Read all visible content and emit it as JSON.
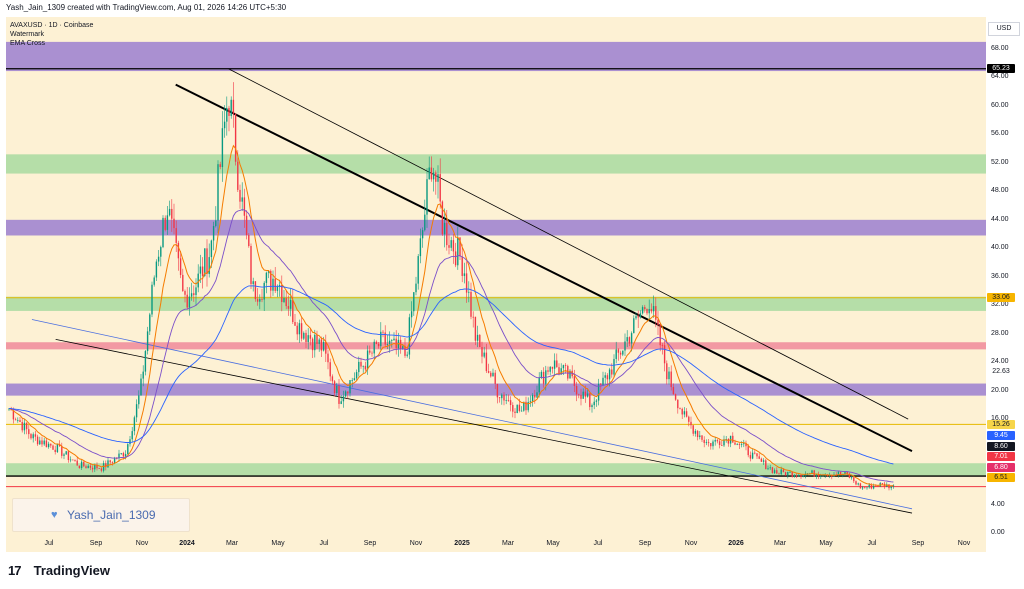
{
  "header": {
    "text": "Yash_Jain_1309 created with TradingView.com, Aug 01, 2026 14:26 UTC+5:30"
  },
  "legend": {
    "symbol": "AVAXUSD · 1D · Coinbase",
    "line2": "Watermark",
    "line3": "EMA Cross"
  },
  "currency": "USD",
  "watermark": {
    "icon": "heart-icon",
    "text": "Yash_Jain_1309"
  },
  "brand": {
    "logo": "17",
    "name": "TradingView"
  },
  "price_labels": [
    "68.00",
    "64.00",
    "60.00",
    "56.00",
    "52.00",
    "48.00",
    "44.00",
    "40.00",
    "36.00",
    "32.00",
    "28.00",
    "24.00",
    "20.00",
    "16.00",
    "4.00",
    "0.00"
  ],
  "price_tags": [
    {
      "text": "65.23",
      "bg": "#000000",
      "fg": "#ffffff"
    },
    {
      "text": "33.06",
      "bg": "#f7b500",
      "fg": "#131722"
    },
    {
      "text": "22.63",
      "bg": "#ffffff",
      "fg": "#131722"
    },
    {
      "text": "15.26",
      "bg": "#f7d54a",
      "fg": "#131722"
    },
    {
      "text": "9.45",
      "bg": "#2962ff",
      "fg": "#ffffff"
    },
    {
      "text": "8.60",
      "bg": "#131722",
      "fg": "#ffffff"
    },
    {
      "text": "7.01",
      "bg": "#f23645",
      "fg": "#ffffff"
    },
    {
      "text": "6.80",
      "bg": "#e5306a",
      "fg": "#ffffff"
    },
    {
      "text": "6.51",
      "bg": "#f7b500",
      "fg": "#131722"
    }
  ],
  "time_labels": [
    {
      "text": "Jul",
      "bold": false
    },
    {
      "text": "Sep",
      "bold": false
    },
    {
      "text": "Nov",
      "bold": false
    },
    {
      "text": "2024",
      "bold": true
    },
    {
      "text": "Mar",
      "bold": false
    },
    {
      "text": "May",
      "bold": false
    },
    {
      "text": "Jul",
      "bold": false
    },
    {
      "text": "Sep",
      "bold": false
    },
    {
      "text": "Nov",
      "bold": false
    },
    {
      "text": "2025",
      "bold": true
    },
    {
      "text": "Mar",
      "bold": false
    },
    {
      "text": "May",
      "bold": false
    },
    {
      "text": "Jul",
      "bold": false
    },
    {
      "text": "Sep",
      "bold": false
    },
    {
      "text": "Nov",
      "bold": false
    },
    {
      "text": "2026",
      "bold": true
    },
    {
      "text": "Mar",
      "bold": false
    },
    {
      "text": "May",
      "bold": false
    },
    {
      "text": "Jul",
      "bold": false
    },
    {
      "text": "Sep",
      "bold": false
    },
    {
      "text": "Nov",
      "bold": false
    }
  ],
  "colors": {
    "background": "#fdf1d4",
    "purple_zone": "#9b7fd0",
    "green_zone": "#a8dba0",
    "pink_zone": "#f08a9a",
    "candle_up": "#089981",
    "candle_down": "#f23645",
    "ema_fast": "#f57c00",
    "ema_slow": "#7b4fc9",
    "ema_long": "#2962ff"
  },
  "chart_data": {
    "type": "candlestick",
    "title": "AVAXUSD · 1D · Coinbase",
    "ylim": [
      0,
      70
    ],
    "zones": [
      {
        "from": 64.9,
        "to": 69.0,
        "color": "purple"
      },
      {
        "from": 50.5,
        "to": 53.2,
        "color": "green"
      },
      {
        "from": 41.8,
        "to": 44.0,
        "color": "purple"
      },
      {
        "from": 31.2,
        "to": 33.2,
        "color": "green"
      },
      {
        "from": 25.8,
        "to": 26.8,
        "color": "pink"
      },
      {
        "from": 19.3,
        "to": 21.0,
        "color": "purple"
      },
      {
        "from": 8.0,
        "to": 9.8,
        "color": "green"
      }
    ],
    "horizontal_levels": [
      {
        "value": 65.23,
        "color": "black"
      },
      {
        "value": 33.06,
        "color": "yellow"
      },
      {
        "value": 15.26,
        "color": "yellow"
      },
      {
        "value": 8.0,
        "color": "black"
      },
      {
        "value": 6.51,
        "color": "red"
      }
    ],
    "trendlines": [
      {
        "from": [
          "2024-03-14",
          65.23
        ],
        "to": [
          "2026-08-20",
          16.0
        ],
        "width": "thin"
      },
      {
        "from": [
          "2024-01-05",
          63.0
        ],
        "to": [
          "2026-08-25",
          11.5
        ],
        "width": "thick"
      },
      {
        "from": [
          "2023-08-01",
          27.2
        ],
        "to": [
          "2026-08-25",
          2.8
        ],
        "width": "thin"
      },
      {
        "from": [
          "2023-07-01",
          30.0
        ],
        "to": [
          "2026-08-25",
          3.4
        ],
        "width": "thin-blue"
      }
    ],
    "price_path": [
      [
        "2023-06-01",
        17.5
      ],
      [
        "2023-07-01",
        13.5
      ],
      [
        "2023-08-01",
        12.0
      ],
      [
        "2023-09-01",
        9.5
      ],
      [
        "2023-10-01",
        9.2
      ],
      [
        "2023-11-01",
        11.5
      ],
      [
        "2023-11-20",
        20.0
      ],
      [
        "2023-12-10",
        38.0
      ],
      [
        "2023-12-25",
        46.0
      ],
      [
        "2024-01-15",
        33.0
      ],
      [
        "2024-02-01",
        35.0
      ],
      [
        "2024-02-20",
        40.0
      ],
      [
        "2024-03-14",
        62.0
      ],
      [
        "2024-04-01",
        46.0
      ],
      [
        "2024-04-15",
        34.0
      ],
      [
        "2024-05-15",
        36.0
      ],
      [
        "2024-06-15",
        29.0
      ],
      [
        "2024-07-15",
        26.0
      ],
      [
        "2024-08-05",
        19.0
      ],
      [
        "2024-09-01",
        23.0
      ],
      [
        "2024-10-01",
        27.0
      ],
      [
        "2024-11-01",
        25.0
      ],
      [
        "2024-11-20",
        40.0
      ],
      [
        "2024-12-05",
        53.0
      ],
      [
        "2024-12-20",
        43.0
      ],
      [
        "2025-01-15",
        38.0
      ],
      [
        "2025-02-01",
        27.0
      ],
      [
        "2025-03-01",
        20.0
      ],
      [
        "2025-04-01",
        17.0
      ],
      [
        "2025-05-10",
        24.0
      ],
      [
        "2025-06-01",
        22.0
      ],
      [
        "2025-07-01",
        18.0
      ],
      [
        "2025-08-01",
        24.0
      ],
      [
        "2025-09-15",
        33.0
      ],
      [
        "2025-10-10",
        22.0
      ],
      [
        "2025-11-01",
        16.0
      ],
      [
        "2025-12-01",
        12.5
      ],
      [
        "2026-01-01",
        13.5
      ],
      [
        "2026-02-01",
        10.5
      ],
      [
        "2026-03-01",
        8.5
      ],
      [
        "2026-04-01",
        8.3
      ],
      [
        "2026-05-01",
        8.4
      ],
      [
        "2026-06-01",
        8.2
      ],
      [
        "2026-06-20",
        6.3
      ],
      [
        "2026-07-15",
        6.8
      ],
      [
        "2026-08-01",
        6.51
      ]
    ]
  }
}
